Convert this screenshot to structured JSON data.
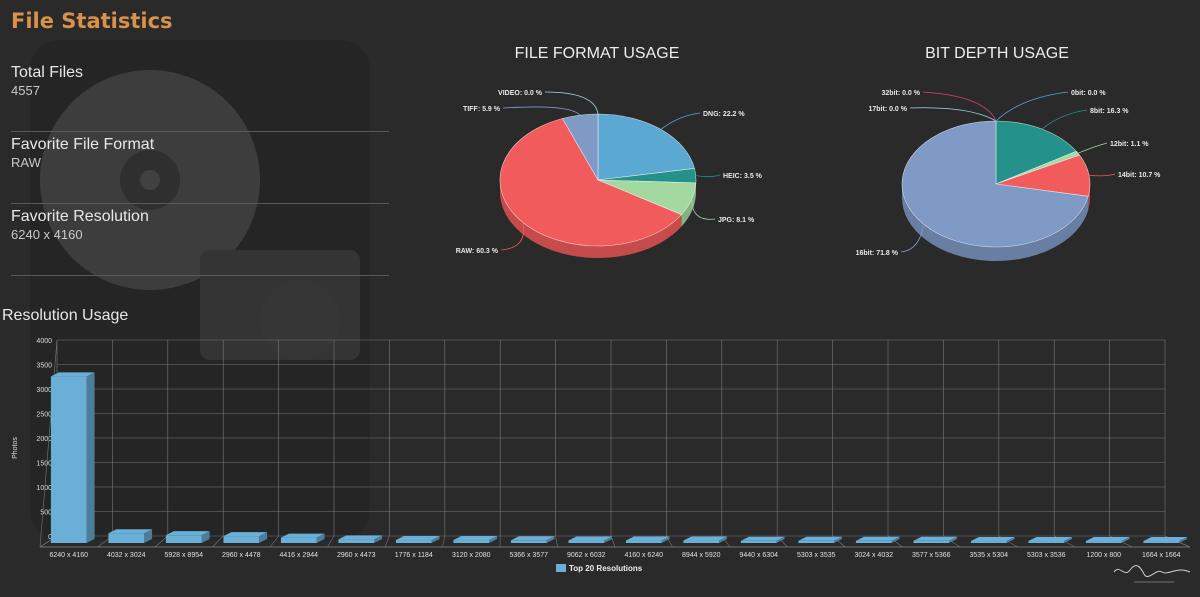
{
  "page": {
    "title": "File Statistics",
    "resolution_section_title": "Resolution Usage"
  },
  "stats": [
    {
      "label": "Total Files",
      "value": "4557"
    },
    {
      "label": "Favorite File Format",
      "value": "RAW"
    },
    {
      "label": "Favorite Resolution",
      "value": "6240 x 4160"
    }
  ],
  "colors": {
    "title_accent": "#d8924a",
    "background": "#2a2a2b",
    "bar": "#6aafd8"
  },
  "chart_data": [
    {
      "type": "pie",
      "title": "FILE FORMAT USAGE",
      "slices": [
        {
          "label": "DNG: 22.2 %",
          "value": 22.2,
          "color": "#5ba8d2"
        },
        {
          "label": "HEIC: 3.5 %",
          "value": 3.5,
          "color": "#24918a"
        },
        {
          "label": "JPG: 8.1 %",
          "value": 8.1,
          "color": "#a3d9a0"
        },
        {
          "label": "RAW: 60.3 %",
          "value": 60.3,
          "color": "#f25b5b"
        },
        {
          "label": "TIFF: 5.9 %",
          "value": 5.9,
          "color": "#7f9ac5"
        },
        {
          "label": "VIDEO: 0.0 %",
          "value": 0.0,
          "color": "#9ee0e8"
        }
      ]
    },
    {
      "type": "pie",
      "title": "BIT DEPTH USAGE",
      "slices": [
        {
          "label": "0bit: 0.0 %",
          "value": 0.0,
          "color": "#5ba8d2"
        },
        {
          "label": "8bit: 16.3 %",
          "value": 16.3,
          "color": "#24918a"
        },
        {
          "label": "12bit: 1.1 %",
          "value": 1.1,
          "color": "#a3d9a0"
        },
        {
          "label": "14bit: 10.7 %",
          "value": 10.7,
          "color": "#f25b5b"
        },
        {
          "label": "16bit: 71.8 %",
          "value": 71.8,
          "color": "#7f9ac5"
        },
        {
          "label": "17bit: 0.0 %",
          "value": 0.0,
          "color": "#9ee0e8"
        },
        {
          "label": "32bit: 0.0 %",
          "value": 0.0,
          "color": "#e0407a"
        }
      ]
    },
    {
      "type": "bar",
      "title": "Resolution Usage",
      "ylabel": "Photos",
      "ylim": [
        0,
        4000
      ],
      "yticks": [
        0,
        500,
        1000,
        1500,
        2000,
        2500,
        3000,
        3500,
        4000
      ],
      "grid": true,
      "legend": "bottom-center",
      "categories": [
        "6240 x 4160",
        "4032 x 3024",
        "5928 x 8954",
        "2960 x 4478",
        "4416 x 2944",
        "2960 x 4473",
        "1776 x 1184",
        "3120 x 2080",
        "5366 x 3577",
        "9062 x 6032",
        "4160 x 6240",
        "8944 x 5920",
        "9440 x 6304",
        "5303 x 3535",
        "3024 x 4032",
        "3577 x 5366",
        "3535 x 5304",
        "5303 x 3536",
        "1200 x 800",
        "1664 x 1664"
      ],
      "series": [
        {
          "name": "Top 20 Resolutions",
          "color": "#6aafd8",
          "values": [
            3400,
            200,
            160,
            140,
            110,
            75,
            60,
            60,
            55,
            50,
            50,
            50,
            45,
            45,
            45,
            45,
            40,
            40,
            40,
            40
          ]
        }
      ]
    }
  ]
}
